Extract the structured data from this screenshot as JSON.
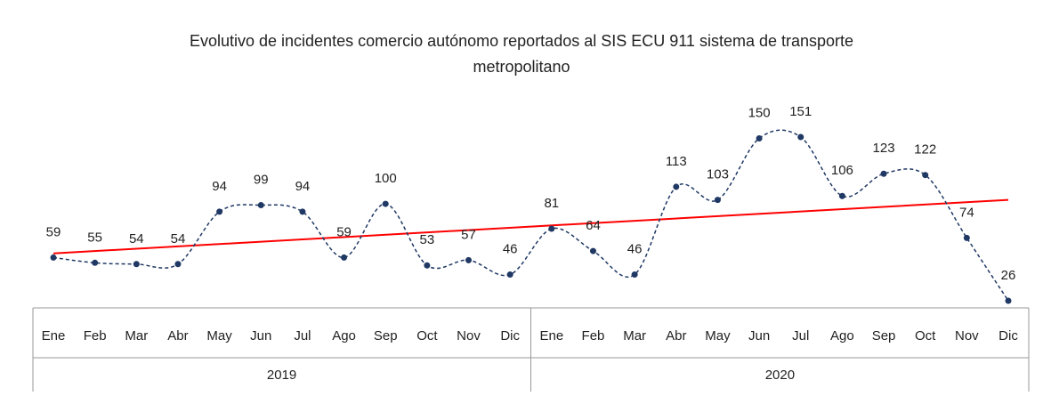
{
  "chart_data": {
    "type": "line",
    "title": "Evolutivo de incidentes comercio autónomo reportados al SIS ECU 911 sistema de transporte metropolitano",
    "categories": [
      "Ene",
      "Feb",
      "Mar",
      "Abr",
      "May",
      "Jun",
      "Jul",
      "Ago",
      "Sep",
      "Oct",
      "Nov",
      "Dic",
      "Ene",
      "Feb",
      "Mar",
      "Abr",
      "May",
      "Jun",
      "Jul",
      "Ago",
      "Sep",
      "Oct",
      "Nov",
      "Dic"
    ],
    "groups": [
      "2019",
      "2020"
    ],
    "series": [
      {
        "name": "Incidentes",
        "color": "#1f3864",
        "values": [
          59,
          55,
          54,
          54,
          94,
          99,
          94,
          59,
          100,
          53,
          57,
          46,
          81,
          64,
          46,
          113,
          103,
          150,
          151,
          106,
          123,
          122,
          74,
          26
        ]
      }
    ],
    "trendline": true,
    "trendline_color": "#ff0000",
    "smooth": true
  }
}
